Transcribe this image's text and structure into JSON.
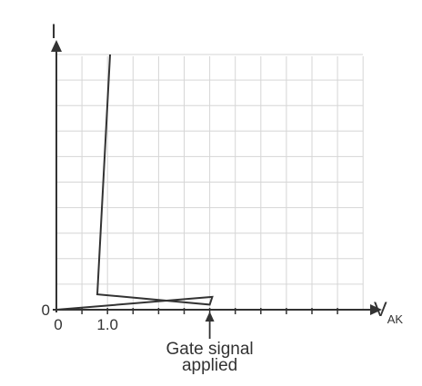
{
  "chart_data": {
    "type": "line",
    "ylabel": "I",
    "xlabel_main": "V",
    "xlabel_sub": "AK",
    "x_tick_labels": [
      "0",
      "1.0"
    ],
    "y_tick_labels": [
      "0"
    ],
    "annotation": {
      "line1": "Gate signal",
      "line2": "applied",
      "x": 6.0
    },
    "xlim": [
      0,
      11
    ],
    "ylim": [
      0,
      10
    ],
    "grid": true,
    "curve": [
      {
        "x": 0,
        "y": 0
      },
      {
        "x": 6.1,
        "y": 0.5
      },
      {
        "x": 6.0,
        "y": 0.2
      },
      {
        "x": 1.6,
        "y": 0.6
      },
      {
        "x": 2.1,
        "y": 10
      }
    ]
  },
  "colors": {
    "grid": "#d6d6d6",
    "axis": "#333333",
    "curve": "#333333"
  }
}
